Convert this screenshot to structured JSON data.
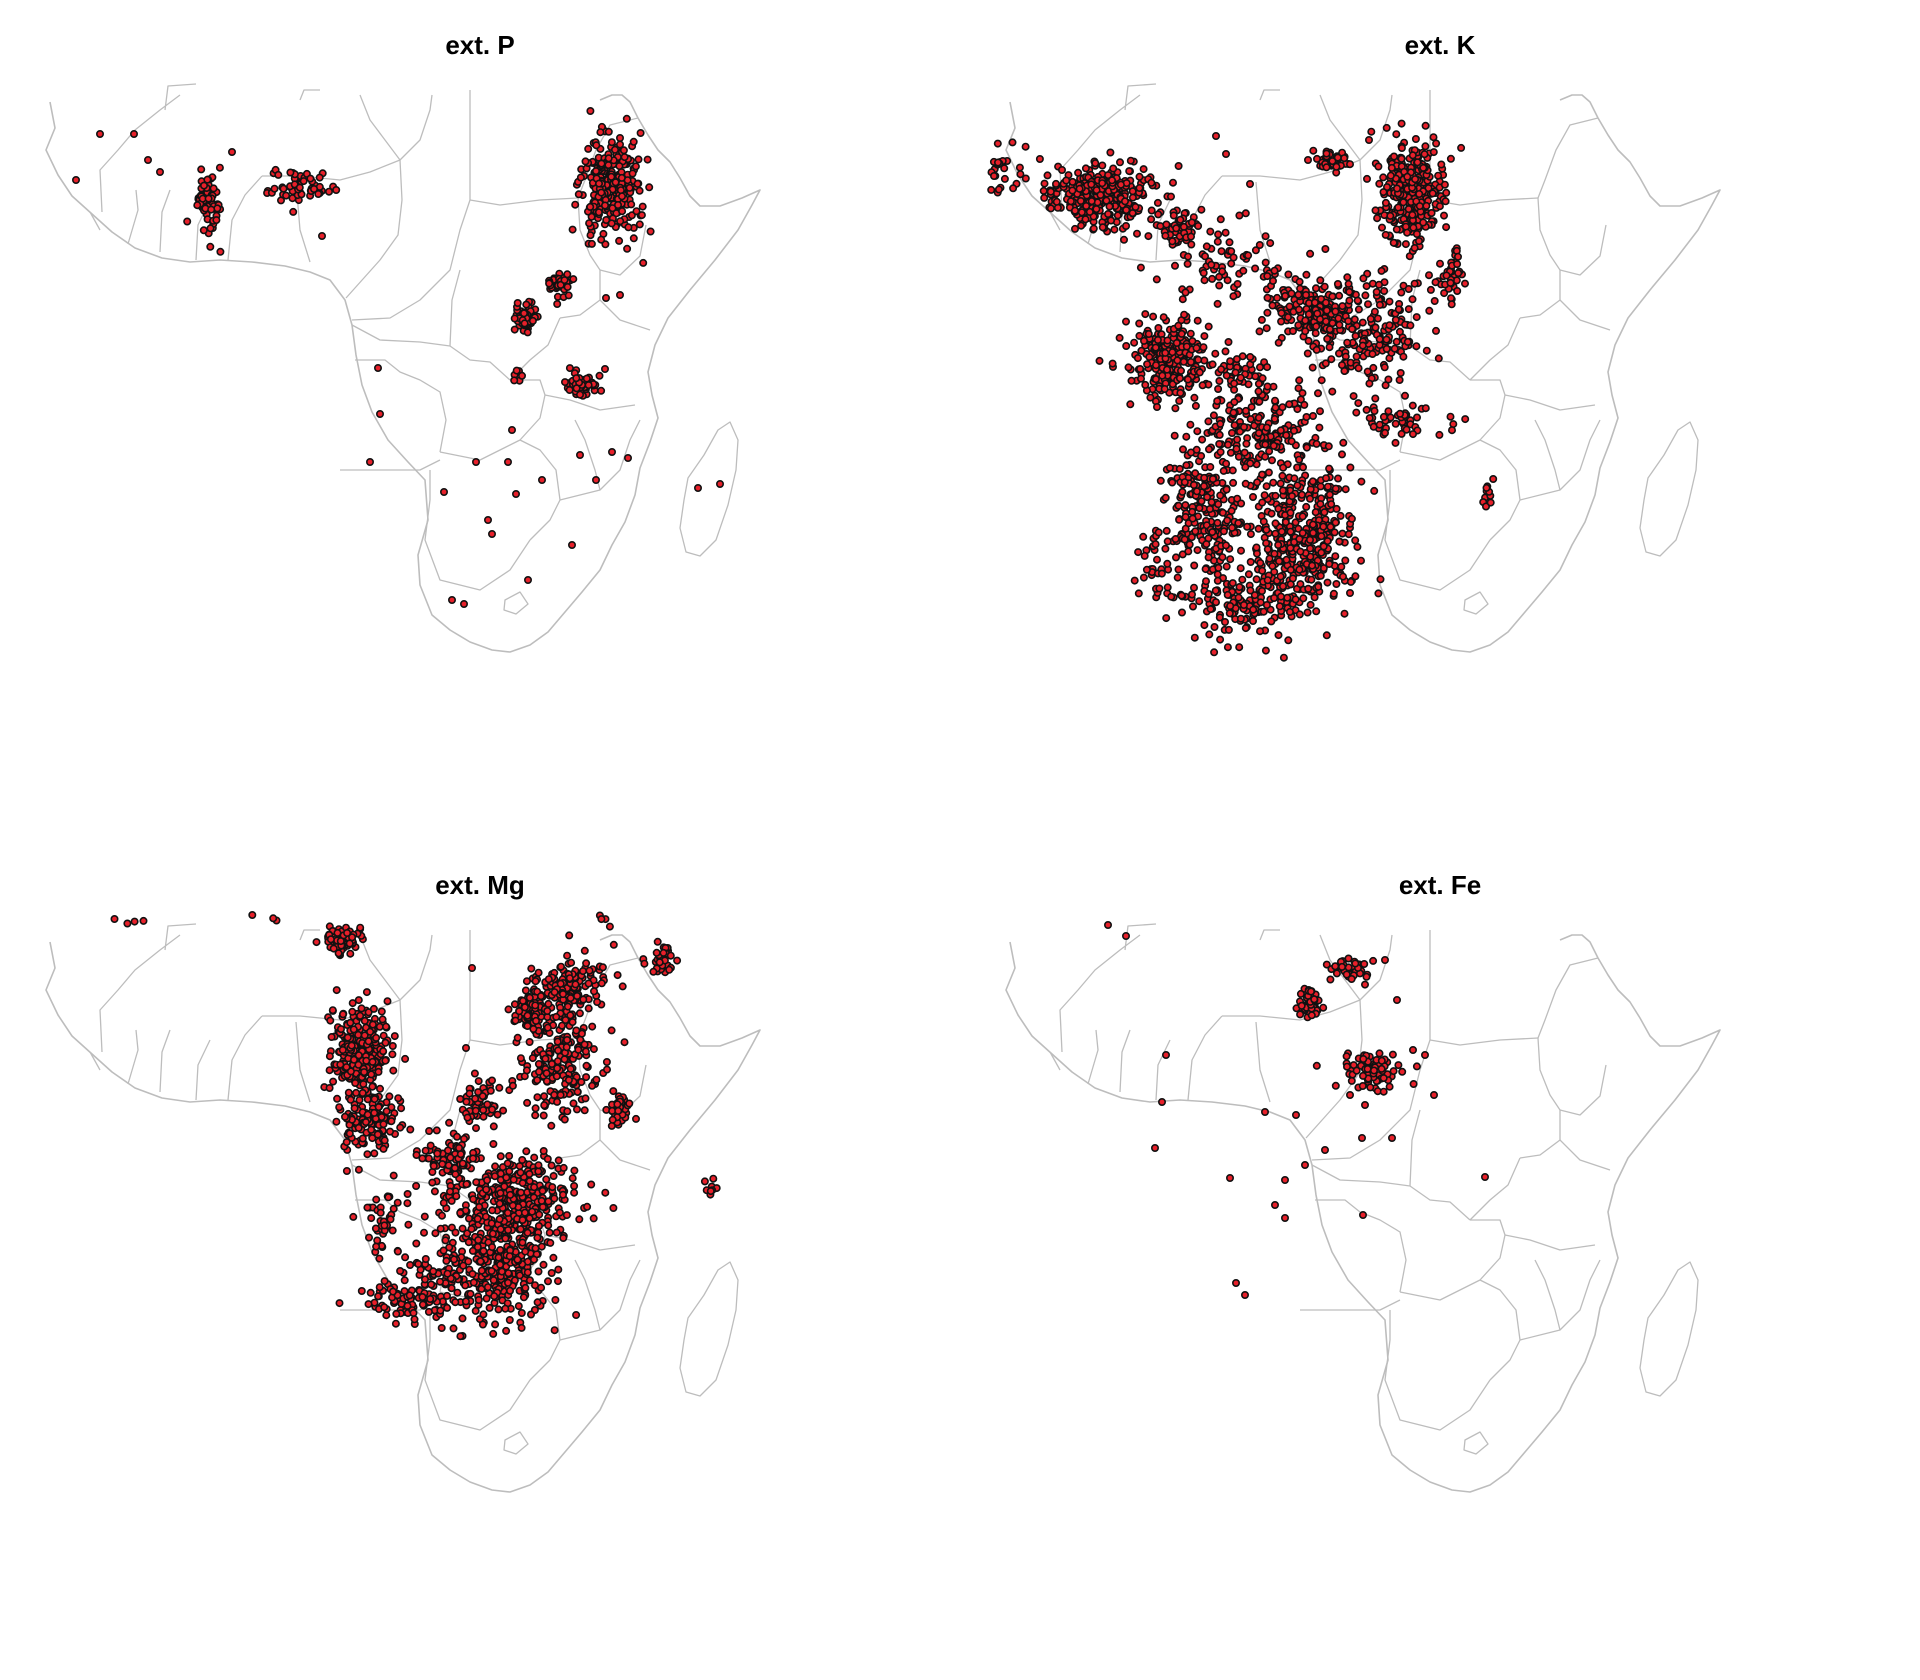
{
  "panels": [
    {
      "title": "ext. P",
      "density": "sparse"
    },
    {
      "title": "ext. K",
      "density": "dense"
    },
    {
      "title": "ext. Mg",
      "density": "dense"
    },
    {
      "title": "ext. Fe",
      "density": "sparse"
    }
  ],
  "colors": {
    "point_fill": "#e8202a",
    "point_stroke": "#111111",
    "map_border": "#bdbdbd",
    "background": "#ffffff"
  }
}
